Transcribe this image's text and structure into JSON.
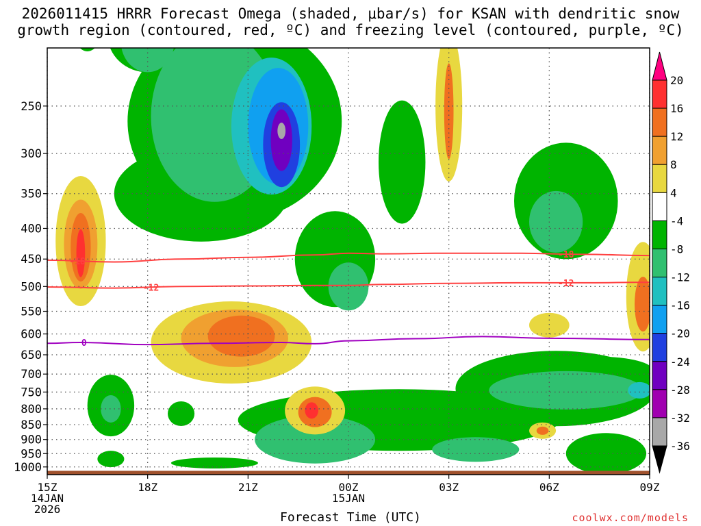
{
  "title_line1": "2026011415 HRRR Forecast Omega (shaded, μbar/s) for KSAN with dendritic snow",
  "title_line2": "growth region (contoured, red, ºC) and freezing level (contoured, purple, ºC)",
  "credit": "coolwx.com/models",
  "chart_data": {
    "type": "heatmap",
    "title": "2026011415 HRRR Forecast Omega (shaded, μbar/s) for KSAN with dendritic snow growth region (contoured, red, ºC) and freezing level (contoured, purple, ºC)",
    "xlabel": "Forecast Time (UTC)",
    "ylabel": "",
    "x_range_hours": [
      0,
      18
    ],
    "y_range_mb": [
      200,
      1030
    ],
    "x_ticks": [
      {
        "hour": 0,
        "lines": [
          "15Z",
          "14JAN",
          "2026"
        ]
      },
      {
        "hour": 3,
        "lines": [
          "18Z"
        ]
      },
      {
        "hour": 6,
        "lines": [
          "21Z"
        ]
      },
      {
        "hour": 9,
        "lines": [
          "00Z",
          "15JAN"
        ]
      },
      {
        "hour": 12,
        "lines": [
          "03Z"
        ]
      },
      {
        "hour": 15,
        "lines": [
          "06Z"
        ]
      },
      {
        "hour": 18,
        "lines": [
          "09Z"
        ]
      }
    ],
    "y_ticks": [
      250,
      300,
      350,
      400,
      450,
      500,
      550,
      600,
      650,
      700,
      750,
      800,
      850,
      900,
      950,
      1000
    ],
    "colorbar": {
      "labels": [
        "20",
        "16",
        "12",
        "8",
        "4",
        "-4",
        "-8",
        "-12",
        "-16",
        "-20",
        "-24",
        "-28",
        "-32",
        "-36"
      ],
      "colors": [
        "#ff0080",
        "#ff3030",
        "#f07020",
        "#f0a030",
        "#e8d840",
        "#ffffff",
        "#00b400",
        "#30c070",
        "#20c0c0",
        "#10a0f0",
        "#2040e0",
        "#7000c0",
        "#a000b0",
        "#a8a8a8",
        "#000000"
      ]
    },
    "contours": [
      {
        "name": "-18",
        "color": "#ff4040",
        "label_hours": [
          0.9,
          15.5
        ],
        "points": [
          [
            0,
            452
          ],
          [
            2,
            455
          ],
          [
            4,
            450
          ],
          [
            6,
            447
          ],
          [
            8,
            443
          ],
          [
            9,
            440
          ],
          [
            10,
            441
          ],
          [
            12,
            440
          ],
          [
            14,
            440
          ],
          [
            16,
            442
          ],
          [
            18,
            444
          ]
        ]
      },
      {
        "name": "-12",
        "color": "#ff4040",
        "label_hours": [
          3.1,
          15.5
        ],
        "points": [
          [
            0,
            501
          ],
          [
            2,
            503
          ],
          [
            4,
            500
          ],
          [
            6,
            499
          ],
          [
            8,
            498
          ],
          [
            9,
            498
          ],
          [
            10,
            496
          ],
          [
            12,
            494
          ],
          [
            14,
            493
          ],
          [
            16,
            493
          ],
          [
            18,
            492
          ]
        ]
      },
      {
        "name": "0",
        "color": "#a000c0",
        "label_hours": [
          1.1
        ],
        "points": [
          [
            0,
            622
          ],
          [
            1,
            620
          ],
          [
            3,
            625
          ],
          [
            5,
            622
          ],
          [
            7,
            620
          ],
          [
            8,
            623
          ],
          [
            9,
            616
          ],
          [
            11,
            611
          ],
          [
            13,
            606
          ],
          [
            15,
            610
          ],
          [
            18,
            613
          ]
        ]
      }
    ],
    "omega_features": [
      {
        "region": "upper ascent core 22Z",
        "value_min": -32,
        "value_max": -28
      },
      {
        "region": "mid-level descent 21-22Z",
        "value_max": 16
      },
      {
        "region": "column descent 16Z",
        "value_max": 20
      },
      {
        "region": "low-level ascent 04-08Z",
        "value_min": -16
      }
    ]
  }
}
